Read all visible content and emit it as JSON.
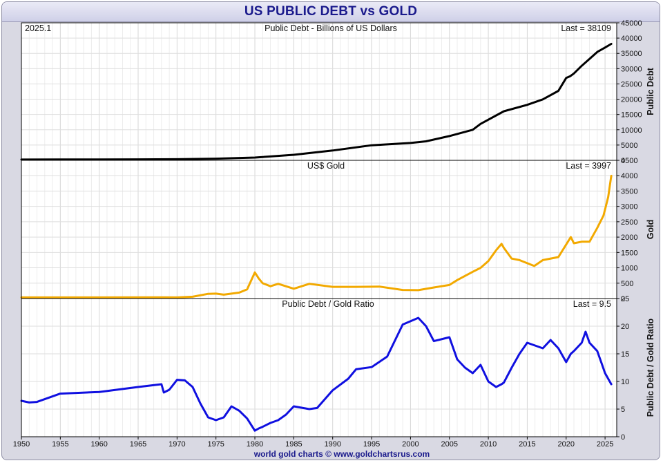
{
  "title": "US PUBLIC DEBT vs GOLD",
  "footer": "world gold charts © www.goldchartsrus.com",
  "chart_data": [
    {
      "type": "line",
      "title": "Public Debt - Billions of US Dollars",
      "corner_label": "2025.1",
      "last_label": "Last = 38109",
      "ylabel": "Public Debt",
      "color": "#000000",
      "ylim": [
        0,
        45000
      ],
      "yticks": [
        0,
        5000,
        10000,
        15000,
        20000,
        25000,
        30000,
        35000,
        40000,
        45000
      ],
      "xlim": [
        1950,
        2026.5
      ],
      "x": [
        1950,
        1955,
        1960,
        1965,
        1970,
        1975,
        1980,
        1985,
        1990,
        1995,
        2000,
        2002,
        2005,
        2008,
        2009,
        2012,
        2015,
        2017,
        2019,
        2020,
        2020.5,
        2021,
        2022,
        2023,
        2024,
        2025,
        2025.8
      ],
      "y": [
        257,
        274,
        286,
        317,
        371,
        533,
        907,
        1817,
        3206,
        4921,
        5674,
        6228,
        7933,
        9986,
        11909,
        16066,
        18151,
        19944,
        22719,
        26945,
        27500,
        28428,
        30928,
        33167,
        35464,
        36900,
        38109
      ]
    },
    {
      "type": "line",
      "title": "US$ Gold",
      "last_label": "Last = 3997",
      "ylabel": "Gold",
      "color": "#f2a900",
      "ylim": [
        0,
        4500
      ],
      "yticks": [
        0,
        500,
        1000,
        1500,
        2000,
        2500,
        3000,
        3500,
        4000,
        4500
      ],
      "xlim": [
        1950,
        2026.5
      ],
      "x": [
        1950,
        1960,
        1968,
        1970,
        1972,
        1974,
        1975,
        1976,
        1978,
        1979,
        1980,
        1980.5,
        1981,
        1982,
        1983,
        1985,
        1987,
        1990,
        1993,
        1996,
        1999,
        2001,
        2003,
        2005,
        2006,
        2008,
        2009,
        2010,
        2011,
        2011.7,
        2012,
        2013,
        2014,
        2015.9,
        2017,
        2019,
        2020.6,
        2021,
        2022,
        2023,
        2024,
        2024.8,
        2025,
        2025.4,
        2025.8
      ],
      "y": [
        35,
        35,
        39,
        36,
        58,
        154,
        160,
        125,
        193,
        300,
        850,
        650,
        500,
        400,
        480,
        320,
        480,
        380,
        380,
        390,
        280,
        272,
        360,
        440,
        600,
        870,
        1000,
        1220,
        1570,
        1780,
        1650,
        1300,
        1250,
        1060,
        1250,
        1350,
        2000,
        1800,
        1850,
        1850,
        2300,
        2700,
        2900,
        3300,
        3997
      ]
    },
    {
      "type": "line",
      "title": "Public Debt / Gold Ratio",
      "last_label": "Last = 9.5",
      "ylabel": "Public Debt / Gold Ratio",
      "color": "#1010e0",
      "ylim": [
        0,
        25
      ],
      "yticks": [
        0,
        5,
        10,
        15,
        20,
        25
      ],
      "xlim": [
        1950,
        2026.5
      ],
      "xticks": [
        1950,
        1955,
        1960,
        1965,
        1970,
        1975,
        1980,
        1985,
        1990,
        1995,
        2000,
        2005,
        2010,
        2015,
        2020,
        2025
      ],
      "x": [
        1950,
        1951,
        1952,
        1953,
        1955,
        1960,
        1965,
        1968,
        1968.3,
        1969,
        1970,
        1971,
        1972,
        1973,
        1974,
        1975,
        1976,
        1977,
        1978,
        1979,
        1980,
        1980.5,
        1981,
        1982,
        1983,
        1984,
        1985,
        1987,
        1988,
        1990,
        1992,
        1993,
        1995,
        1997,
        1999,
        2001,
        2002,
        2003,
        2005,
        2006,
        2007,
        2008,
        2009,
        2010,
        2011,
        2011.7,
        2012,
        2013,
        2014,
        2015,
        2016,
        2017,
        2018,
        2019,
        2020,
        2020.6,
        2021,
        2022,
        2022.5,
        2023,
        2024,
        2024.5,
        2025,
        2025.8
      ],
      "y": [
        6.5,
        6.2,
        6.3,
        6.8,
        7.8,
        8.1,
        9,
        9.5,
        8.0,
        8.5,
        10.3,
        10.2,
        9.0,
        6.0,
        3.5,
        3.0,
        3.5,
        5.5,
        4.7,
        3.3,
        1.1,
        1.5,
        1.8,
        2.5,
        3.0,
        4.0,
        5.5,
        5.0,
        5.2,
        8.4,
        10.5,
        12.2,
        12.6,
        14.5,
        20.3,
        21.5,
        20.0,
        17.3,
        18.0,
        14.0,
        12.5,
        11.5,
        13.0,
        10.0,
        9.0,
        9.5,
        9.8,
        12.5,
        15.0,
        17.0,
        16.5,
        16.0,
        17.5,
        16.0,
        13.5,
        15.0,
        15.5,
        17.0,
        19.0,
        17.0,
        15.5,
        13.5,
        11.5,
        9.5
      ]
    }
  ]
}
